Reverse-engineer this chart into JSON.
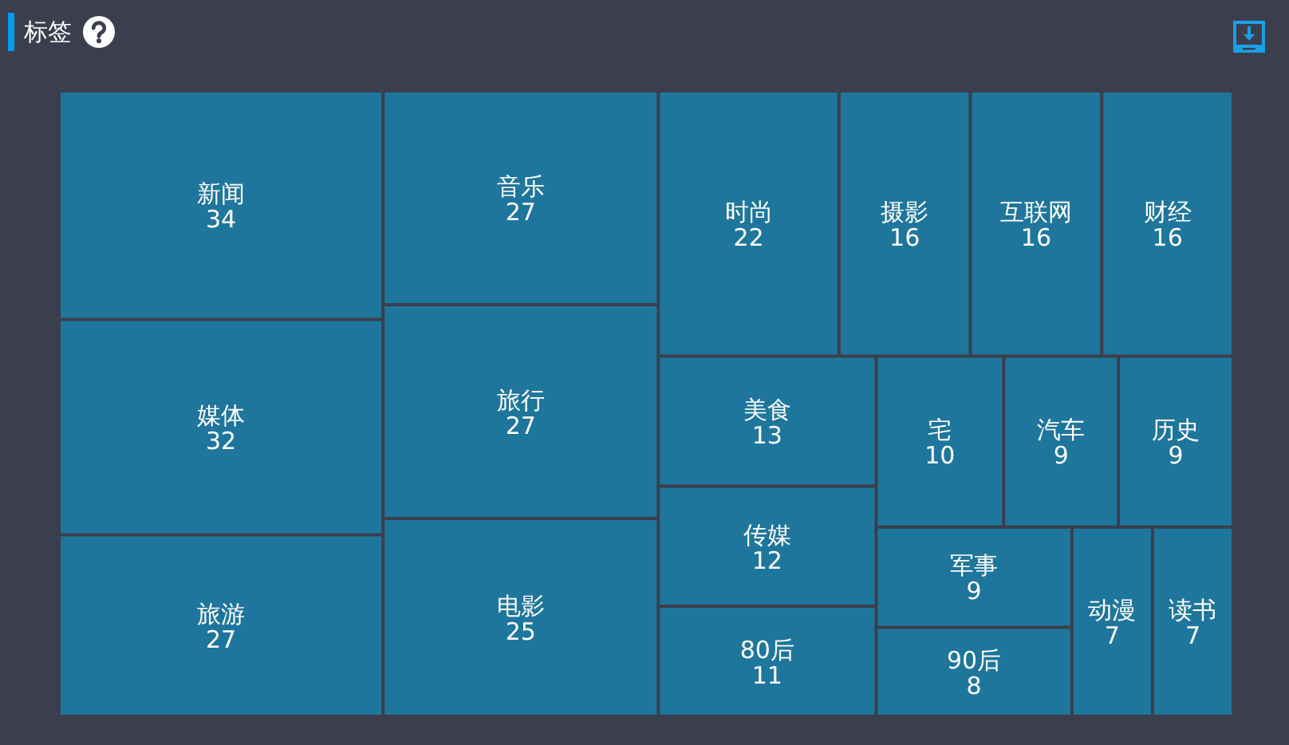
{
  "chart_data": {
    "type": "other",
    "title": "标签",
    "categories": [
      "新闻",
      "媒体",
      "旅游",
      "音乐",
      "旅行",
      "电影",
      "时尚",
      "摄影",
      "互联网",
      "财经",
      "美食",
      "传媒",
      "80后",
      "宅",
      "汽车",
      "历史",
      "军事",
      "90后",
      "动漫",
      "读书"
    ],
    "values": [
      34,
      32,
      27,
      27,
      27,
      25,
      22,
      16,
      16,
      16,
      13,
      12,
      11,
      10,
      9,
      9,
      9,
      8,
      7,
      7
    ],
    "color": "#1f769c",
    "data_labels": true
  }
}
